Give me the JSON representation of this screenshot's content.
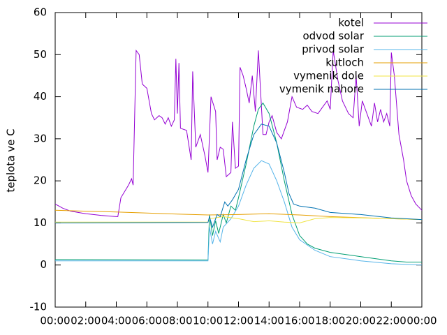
{
  "chart_data": {
    "type": "line",
    "y_label": "teplota ve C",
    "xlim": [
      0,
      24
    ],
    "ylim": [
      -10,
      60
    ],
    "xticks": [
      {
        "value": 0,
        "label": "00:00"
      },
      {
        "value": 2,
        "label": "02:00"
      },
      {
        "value": 4,
        "label": "04:00"
      },
      {
        "value": 6,
        "label": "06:00"
      },
      {
        "value": 8,
        "label": "08:00"
      },
      {
        "value": 10,
        "label": "10:00"
      },
      {
        "value": 12,
        "label": "12:00"
      },
      {
        "value": 14,
        "label": "14:00"
      },
      {
        "value": 16,
        "label": "16:00"
      },
      {
        "value": 18,
        "label": "18:00"
      },
      {
        "value": 20,
        "label": "20:00"
      },
      {
        "value": 22,
        "label": "22:00"
      },
      {
        "value": 24,
        "label": "00:00"
      }
    ],
    "yticks": [
      -10,
      0,
      10,
      20,
      30,
      40,
      50,
      60
    ],
    "legend": "top-right",
    "series": [
      {
        "name": "kotel",
        "color": "#9400d3",
        "x": [
          0,
          0.5,
          1,
          2,
          3,
          4,
          4.1,
          4.3,
          4.8,
          5.0,
          5.1,
          5.3,
          5.5,
          5.7,
          6.0,
          6.3,
          6.5,
          6.8,
          7.0,
          7.2,
          7.4,
          7.6,
          7.8,
          7.9,
          8.0,
          8.1,
          8.2,
          8.6,
          8.9,
          9.0,
          9.2,
          9.5,
          9.8,
          10.0,
          10.2,
          10.5,
          10.6,
          10.8,
          11.0,
          11.2,
          11.5,
          11.6,
          11.8,
          12.0,
          12.1,
          12.3,
          12.5,
          12.7,
          12.9,
          13.1,
          13.3,
          13.6,
          13.8,
          14.0,
          14.2,
          14.5,
          14.8,
          15.2,
          15.5,
          15.8,
          16.2,
          16.5,
          16.8,
          17.2,
          17.5,
          17.8,
          18.0,
          18.2,
          18.5,
          18.8,
          19.2,
          19.5,
          19.7,
          19.9,
          20.1,
          20.4,
          20.7,
          20.9,
          21.1,
          21.3,
          21.5,
          21.7,
          21.9,
          22.0,
          22.2,
          22.5,
          22.8,
          23.0,
          23.3,
          23.6,
          24
        ],
        "values": [
          14.5,
          13.5,
          12.8,
          12.2,
          11.8,
          11.5,
          11.5,
          16,
          19,
          20.5,
          19,
          51,
          50,
          43,
          42,
          36,
          34.5,
          35.5,
          35,
          33.5,
          35,
          33,
          34.5,
          49,
          36,
          48,
          32.5,
          32,
          25,
          46,
          28,
          31,
          26,
          22,
          40,
          36.5,
          25,
          28,
          27.5,
          21,
          22,
          34,
          23,
          23.5,
          47,
          45,
          42,
          38.5,
          45,
          36.5,
          51,
          31,
          31,
          34,
          35.5,
          31.5,
          30,
          34,
          40,
          37.5,
          37,
          38,
          36.5,
          36,
          37.5,
          39,
          37,
          51,
          44,
          39,
          36,
          35,
          45,
          33,
          39,
          36,
          33,
          38.5,
          34,
          37,
          34,
          36,
          33,
          50.5,
          45,
          31,
          25,
          20,
          16.5,
          14.5,
          13
        ]
      },
      {
        "name": "odvod solar",
        "color": "#009e73",
        "x": [
          0,
          10,
          10.1,
          10.3,
          10.5,
          10.7,
          11,
          11.2,
          11.5,
          11.8,
          12,
          12.5,
          13,
          13.3,
          13.6,
          14,
          14.5,
          15,
          15.5,
          16,
          16.5,
          17,
          18,
          19,
          20,
          21,
          22,
          23,
          24
        ],
        "values": [
          1.3,
          1.2,
          12,
          7,
          10.5,
          7.5,
          12,
          10,
          14,
          13,
          16,
          24,
          33,
          37,
          38.5,
          36,
          29,
          20,
          12,
          7,
          5,
          4,
          3,
          2.5,
          2,
          1.5,
          1,
          0.7,
          0.7
        ]
      },
      {
        "name": "privod solar",
        "color": "#56b4e9",
        "x": [
          0,
          10,
          10.1,
          10.3,
          10.5,
          10.8,
          11,
          11.5,
          12,
          12.5,
          13,
          13.5,
          14,
          14.5,
          15,
          15.5,
          16,
          17,
          18,
          20,
          22,
          24
        ],
        "values": [
          1,
          1,
          9,
          5,
          8,
          5.5,
          9,
          11,
          14,
          19,
          23,
          24.8,
          24,
          20,
          15,
          9,
          6,
          3.5,
          2,
          1,
          0.3,
          0
        ]
      },
      {
        "name": "kutloch",
        "color": "#e69f00",
        "x": [
          0,
          4,
          8,
          10,
          12,
          14,
          16,
          18,
          22,
          24
        ],
        "values": [
          13,
          12.6,
          12.1,
          11.9,
          12,
          12.2,
          11.9,
          11.5,
          11,
          10.8
        ]
      },
      {
        "name": "vymenik dole",
        "color": "#f0e442",
        "x": [
          0,
          10,
          10.1,
          11,
          12,
          13,
          14,
          15,
          16,
          17,
          18,
          20,
          22,
          24
        ],
        "values": [
          10.2,
          10.2,
          11,
          11.5,
          11,
          10.3,
          10.5,
          10.2,
          10,
          11,
          11.3,
          11.2,
          11,
          10.8
        ]
      },
      {
        "name": "vymenik nahore",
        "color": "#0072b2",
        "x": [
          0,
          10,
          10.1,
          10.3,
          10.6,
          10.8,
          11.1,
          11.3,
          11.6,
          12,
          12.5,
          13,
          13.5,
          14,
          14.5,
          15,
          15.3,
          15.6,
          16,
          17,
          18,
          20,
          22,
          24
        ],
        "values": [
          10,
          10.1,
          11.5,
          9,
          12,
          11.5,
          15,
          14,
          15.5,
          18,
          25,
          31,
          33.5,
          33,
          29,
          22,
          17,
          14.5,
          14,
          13.5,
          12.5,
          12,
          11.2,
          10.8
        ]
      }
    ]
  }
}
